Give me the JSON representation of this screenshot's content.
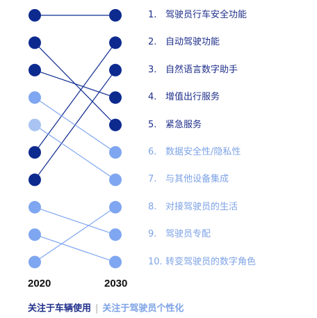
{
  "colors": {
    "dark": "#0d2a8f",
    "light": "#7fa6f0",
    "lightest": "#a9c4f2",
    "dark_text": "#1f2f8a",
    "light_text": "#7ea3e6"
  },
  "chart_data": {
    "type": "slope",
    "x": [
      "2020",
      "2030"
    ],
    "legend": {
      "dark": "关注于车辆使用",
      "light": "关注于驾驶员个性化"
    },
    "items": [
      {
        "rank_2030": 1,
        "label": "驾驶员行车安全功能",
        "rank_2020": 1,
        "group": "dark"
      },
      {
        "rank_2030": 2,
        "label": "自动驾驶功能",
        "rank_2020": 6,
        "group": "dark"
      },
      {
        "rank_2030": 3,
        "label": "自然语言数字助手",
        "rank_2020": 7,
        "group": "dark"
      },
      {
        "rank_2030": 4,
        "label": "增值出行服务",
        "rank_2020": 3,
        "group": "dark"
      },
      {
        "rank_2030": 5,
        "label": "紧急服务",
        "rank_2020": 2,
        "group": "dark"
      },
      {
        "rank_2030": 6,
        "label": "数据安全性/隐私性",
        "rank_2020": 4,
        "group": "light"
      },
      {
        "rank_2030": 7,
        "label": "与其他设备集成",
        "rank_2020": 5,
        "group": "light"
      },
      {
        "rank_2030": 8,
        "label": "对接驾驶员的生活",
        "rank_2020": 10,
        "group": "light"
      },
      {
        "rank_2030": 9,
        "label": "驾驶员专配",
        "rank_2020": 8,
        "group": "light"
      },
      {
        "rank_2030": 10,
        "label": "转变驾驶员的数字角色",
        "rank_2020": 9,
        "group": "light"
      }
    ]
  }
}
